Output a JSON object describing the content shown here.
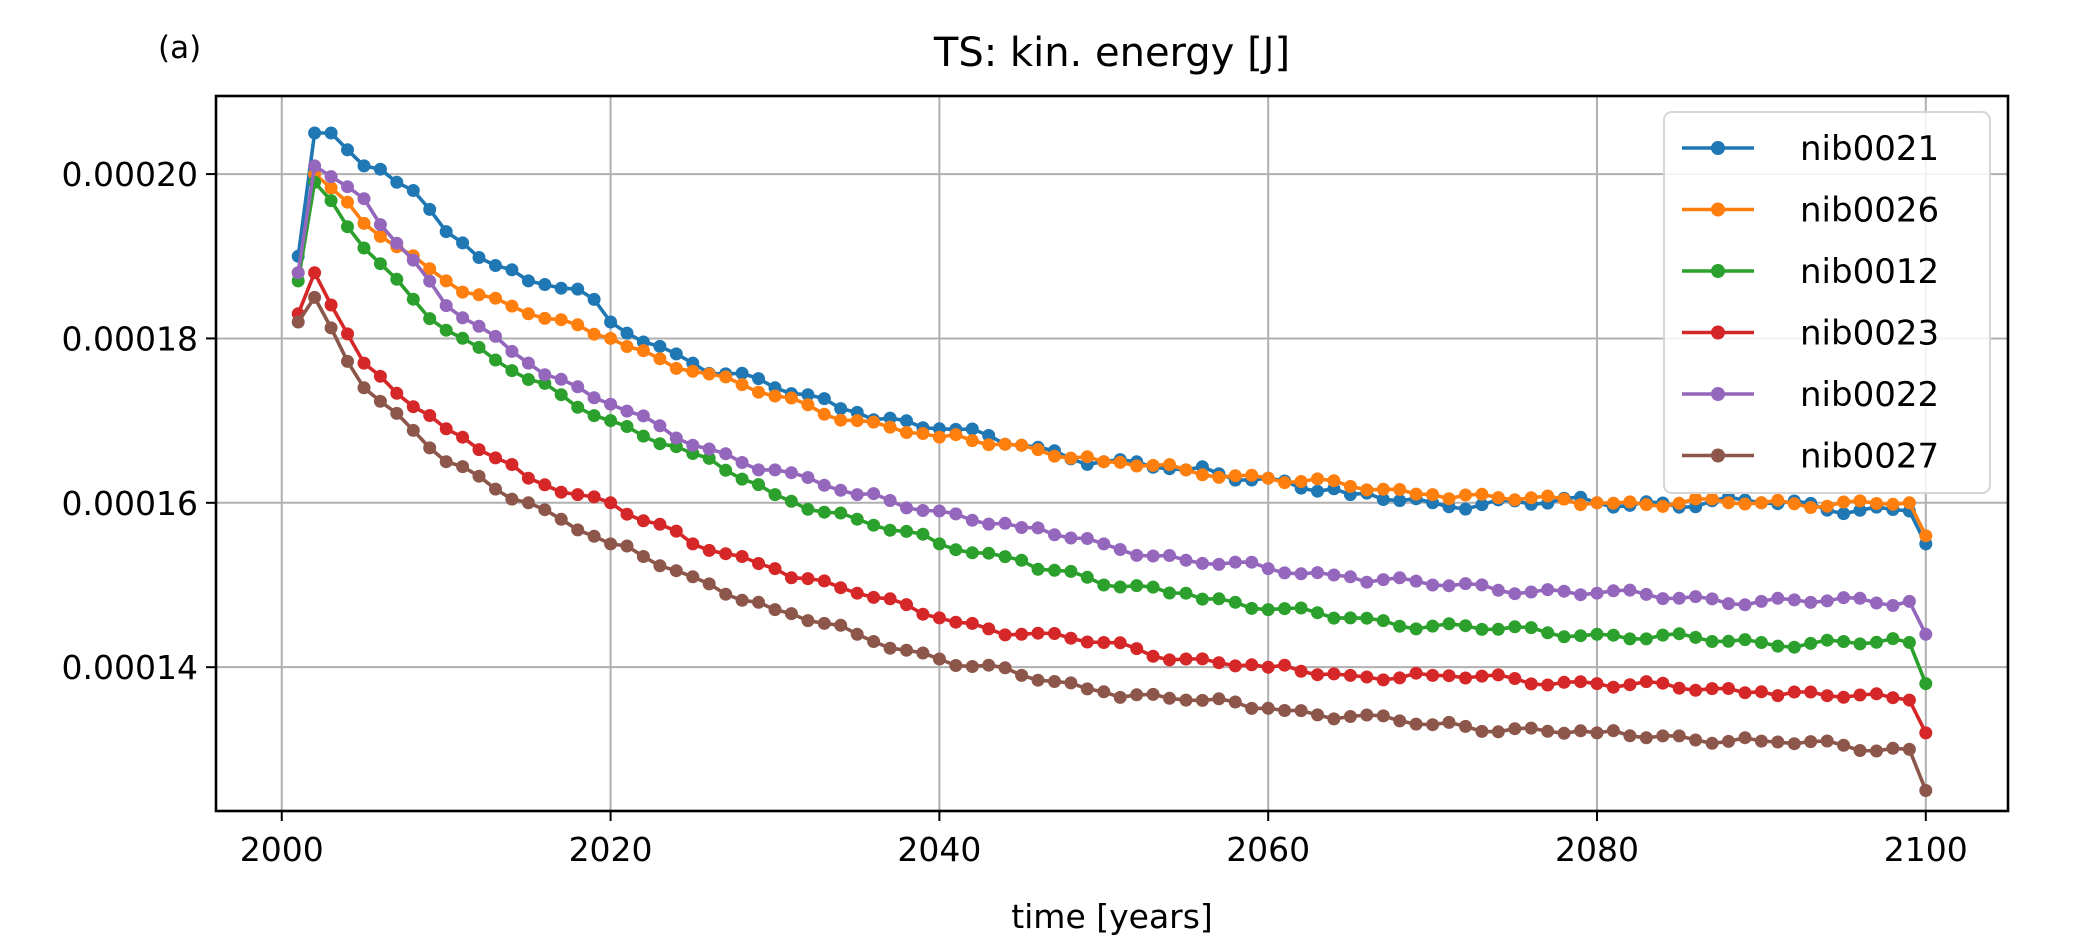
{
  "chart_data": {
    "type": "line",
    "panel_label": "(a)",
    "title": "TS: kin. energy [J]",
    "xlabel": "time [years]",
    "ylabel": "",
    "xlim": [
      1996,
      2105
    ],
    "ylim": [
      0.0001225,
      0.0002095
    ],
    "xticks": [
      2000,
      2020,
      2040,
      2060,
      2080,
      2100
    ],
    "xtick_labels": [
      "2000",
      "2020",
      "2040",
      "2060",
      "2080",
      "2100"
    ],
    "yticks": [
      0.00014,
      0.00016,
      0.00018,
      0.0002
    ],
    "ytick_labels": [
      "0.00014",
      "0.00016",
      "0.00018",
      "0.00020"
    ],
    "grid": true,
    "legend_position": "top-right",
    "x_start": 2001,
    "x_end": 2100,
    "series": [
      {
        "name": "nib0021",
        "color": "#1f77b4",
        "anchors": [
          [
            2001,
            0.00019
          ],
          [
            2002,
            0.000205
          ],
          [
            2003,
            0.000205
          ],
          [
            2005,
            0.000201
          ],
          [
            2008,
            0.000198
          ],
          [
            2010,
            0.000193
          ],
          [
            2015,
            0.000187
          ],
          [
            2018,
            0.000186
          ],
          [
            2020,
            0.000182
          ],
          [
            2025,
            0.000177
          ],
          [
            2030,
            0.000174
          ],
          [
            2035,
            0.000171
          ],
          [
            2040,
            0.000169
          ],
          [
            2045,
            0.000167
          ],
          [
            2050,
            0.000165
          ],
          [
            2055,
            0.000164
          ],
          [
            2060,
            0.000163
          ],
          [
            2065,
            0.000161
          ],
          [
            2070,
            0.00016
          ],
          [
            2080,
            0.00016
          ],
          [
            2090,
            0.00016
          ],
          [
            2099,
            0.000159
          ],
          [
            2100,
            0.000155
          ]
        ]
      },
      {
        "name": "nib0026",
        "color": "#ff7f0e",
        "anchors": [
          [
            2001,
            0.000188
          ],
          [
            2002,
            0.0002
          ],
          [
            2005,
            0.000194
          ],
          [
            2010,
            0.000187
          ],
          [
            2015,
            0.000183
          ],
          [
            2020,
            0.00018
          ],
          [
            2025,
            0.000176
          ],
          [
            2030,
            0.000173
          ],
          [
            2035,
            0.00017
          ],
          [
            2040,
            0.000168
          ],
          [
            2045,
            0.000167
          ],
          [
            2050,
            0.000165
          ],
          [
            2055,
            0.000164
          ],
          [
            2060,
            0.000163
          ],
          [
            2065,
            0.000162
          ],
          [
            2070,
            0.000161
          ],
          [
            2080,
            0.00016
          ],
          [
            2090,
            0.00016
          ],
          [
            2099,
            0.00016
          ],
          [
            2100,
            0.000156
          ]
        ]
      },
      {
        "name": "nib0012",
        "color": "#2ca02c",
        "anchors": [
          [
            2001,
            0.000187
          ],
          [
            2002,
            0.000199
          ],
          [
            2005,
            0.000191
          ],
          [
            2010,
            0.000181
          ],
          [
            2015,
            0.000175
          ],
          [
            2020,
            0.00017
          ],
          [
            2025,
            0.000166
          ],
          [
            2030,
            0.000161
          ],
          [
            2035,
            0.000158
          ],
          [
            2040,
            0.000155
          ],
          [
            2045,
            0.000153
          ],
          [
            2050,
            0.00015
          ],
          [
            2055,
            0.000149
          ],
          [
            2060,
            0.000147
          ],
          [
            2065,
            0.000146
          ],
          [
            2070,
            0.000145
          ],
          [
            2080,
            0.000144
          ],
          [
            2090,
            0.000143
          ],
          [
            2099,
            0.000143
          ],
          [
            2100,
            0.000138
          ]
        ]
      },
      {
        "name": "nib0023",
        "color": "#d62728",
        "anchors": [
          [
            2001,
            0.000183
          ],
          [
            2002,
            0.000188
          ],
          [
            2005,
            0.000177
          ],
          [
            2010,
            0.000169
          ],
          [
            2015,
            0.000163
          ],
          [
            2020,
            0.00016
          ],
          [
            2025,
            0.000155
          ],
          [
            2030,
            0.000152
          ],
          [
            2035,
            0.000149
          ],
          [
            2040,
            0.000146
          ],
          [
            2045,
            0.000144
          ],
          [
            2050,
            0.000143
          ],
          [
            2055,
            0.000141
          ],
          [
            2060,
            0.00014
          ],
          [
            2065,
            0.000139
          ],
          [
            2070,
            0.000139
          ],
          [
            2080,
            0.000138
          ],
          [
            2090,
            0.000137
          ],
          [
            2099,
            0.000136
          ],
          [
            2100,
            0.000132
          ]
        ]
      },
      {
        "name": "nib0022",
        "color": "#9467bd",
        "anchors": [
          [
            2001,
            0.000188
          ],
          [
            2002,
            0.000201
          ],
          [
            2005,
            0.000197
          ],
          [
            2010,
            0.000184
          ],
          [
            2015,
            0.000177
          ],
          [
            2020,
            0.000172
          ],
          [
            2025,
            0.000167
          ],
          [
            2030,
            0.000164
          ],
          [
            2035,
            0.000161
          ],
          [
            2040,
            0.000159
          ],
          [
            2045,
            0.000157
          ],
          [
            2050,
            0.000155
          ],
          [
            2055,
            0.000153
          ],
          [
            2060,
            0.000152
          ],
          [
            2065,
            0.000151
          ],
          [
            2070,
            0.00015
          ],
          [
            2080,
            0.000149
          ],
          [
            2090,
            0.000148
          ],
          [
            2099,
            0.000148
          ],
          [
            2100,
            0.000144
          ]
        ]
      },
      {
        "name": "nib0027",
        "color": "#8c564b",
        "anchors": [
          [
            2001,
            0.000182
          ],
          [
            2002,
            0.000185
          ],
          [
            2005,
            0.000174
          ],
          [
            2010,
            0.000165
          ],
          [
            2015,
            0.00016
          ],
          [
            2020,
            0.000155
          ],
          [
            2025,
            0.000151
          ],
          [
            2030,
            0.000147
          ],
          [
            2035,
            0.000144
          ],
          [
            2040,
            0.000141
          ],
          [
            2045,
            0.000139
          ],
          [
            2050,
            0.000137
          ],
          [
            2055,
            0.000136
          ],
          [
            2060,
            0.000135
          ],
          [
            2065,
            0.000134
          ],
          [
            2070,
            0.000133
          ],
          [
            2080,
            0.000132
          ],
          [
            2090,
            0.000131
          ],
          [
            2099,
            0.00013
          ],
          [
            2100,
            0.000125
          ]
        ]
      }
    ]
  }
}
